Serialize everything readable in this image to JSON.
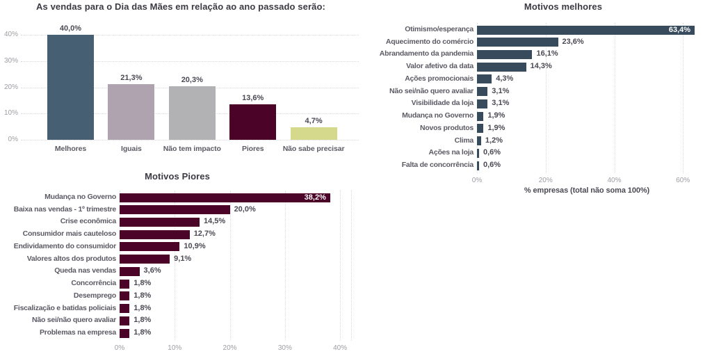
{
  "page": {
    "background": "#ffffff",
    "text_colors": {
      "title": "#3b3a43",
      "category_label": "#5c5a64",
      "value_label": "#4b4953",
      "axis_tick": "#9d9ca4",
      "inside_bar_label": "#ffffff"
    }
  },
  "chart_data": [
    {
      "id": "sales_expectation",
      "type": "bar",
      "title": "As vendas para o Dia das Mães em relação ao ano passado serão:",
      "categories": [
        "Melhores",
        "Iguais",
        "Não tem impacto",
        "Piores",
        "Não sabe precisar"
      ],
      "values": [
        40.0,
        21.3,
        20.3,
        13.6,
        4.7
      ],
      "value_labels": [
        "40,0%",
        "21,3%",
        "20,3%",
        "13,6%",
        "4,7%"
      ],
      "bar_colors": [
        "#465f72",
        "#aea3af",
        "#b2b1b3",
        "#4b0327",
        "#d5d98c"
      ],
      "xlabel": "",
      "ylabel": "",
      "ylim": [
        0,
        40
      ],
      "yticks": [
        {
          "value": 0,
          "label": "0%"
        },
        {
          "value": 10,
          "label": "10%"
        },
        {
          "value": 20,
          "label": "20%"
        },
        {
          "value": 30,
          "label": "30%"
        },
        {
          "value": 40,
          "label": "40%"
        }
      ],
      "grid": "horizontal-dotted",
      "legend": "none"
    },
    {
      "id": "motivos_melhores",
      "type": "bar",
      "orientation": "horizontal",
      "title": "Motivos melhores",
      "categories": [
        "Otimismo/esperança",
        "Aquecimento do comércio",
        "Abrandamento da pandemia",
        "Valor afetivo da data",
        "Ações promocionais",
        "Não sei/não quero avaliar",
        "Visibilidade da loja",
        "Mudança no Governo",
        "Novos produtos",
        "Clima",
        "Ações na loja",
        "Falta de concorrência"
      ],
      "values": [
        63.4,
        23.6,
        16.1,
        14.3,
        4.3,
        3.1,
        3.1,
        1.9,
        1.9,
        1.2,
        0.6,
        0.6
      ],
      "value_labels": [
        "63,4%",
        "23,6%",
        "16,1%",
        "14,3%",
        "4,3%",
        "3,1%",
        "3,1%",
        "1,9%",
        "1,9%",
        "1,2%",
        "0,6%",
        "0,6%"
      ],
      "bar_color": "#374b5c",
      "xlabel": "% empresas (total não soma 100%)",
      "xlim": [
        0,
        64
      ],
      "xticks": [
        {
          "value": 0,
          "label": "0%"
        },
        {
          "value": 20,
          "label": "20%"
        },
        {
          "value": 40,
          "label": "40%"
        },
        {
          "value": 60,
          "label": "60%"
        }
      ],
      "label_inside": [
        0
      ],
      "grid": "vertical-dotted",
      "legend": "none"
    },
    {
      "id": "motivos_piores",
      "type": "bar",
      "orientation": "horizontal",
      "title": "Motivos Piores",
      "categories": [
        "Mudança no Governo",
        "Baixa nas vendas - 1º trimestre",
        "Crise econômica",
        "Consumidor mais cauteloso",
        "Endividamento do consumidor",
        "Valores altos dos produtos",
        "Queda nas vendas",
        "Concorrência",
        "Desemprego",
        "Fiscalização e batidas policiais",
        "Não sei/não quero avaliar",
        "Problemas na empresa"
      ],
      "values": [
        38.2,
        20.0,
        14.5,
        12.7,
        10.9,
        9.1,
        3.6,
        1.8,
        1.8,
        1.8,
        1.8,
        1.8
      ],
      "value_labels": [
        "38,2%",
        "20,0%",
        "14,5%",
        "12,7%",
        "10,9%",
        "9,1%",
        "3,6%",
        "1,8%",
        "1,8%",
        "1,8%",
        "1,8%",
        "1,8%"
      ],
      "bar_color": "#4b0327",
      "xlabel": "",
      "xlim": [
        0,
        42
      ],
      "xticks": [
        {
          "value": 0,
          "label": "0%"
        },
        {
          "value": 10,
          "label": "10%"
        },
        {
          "value": 20,
          "label": "20%"
        },
        {
          "value": 30,
          "label": "30%"
        },
        {
          "value": 40,
          "label": "40%"
        }
      ],
      "label_inside": [
        0
      ],
      "grid": "vertical-dotted",
      "legend": "none"
    }
  ]
}
